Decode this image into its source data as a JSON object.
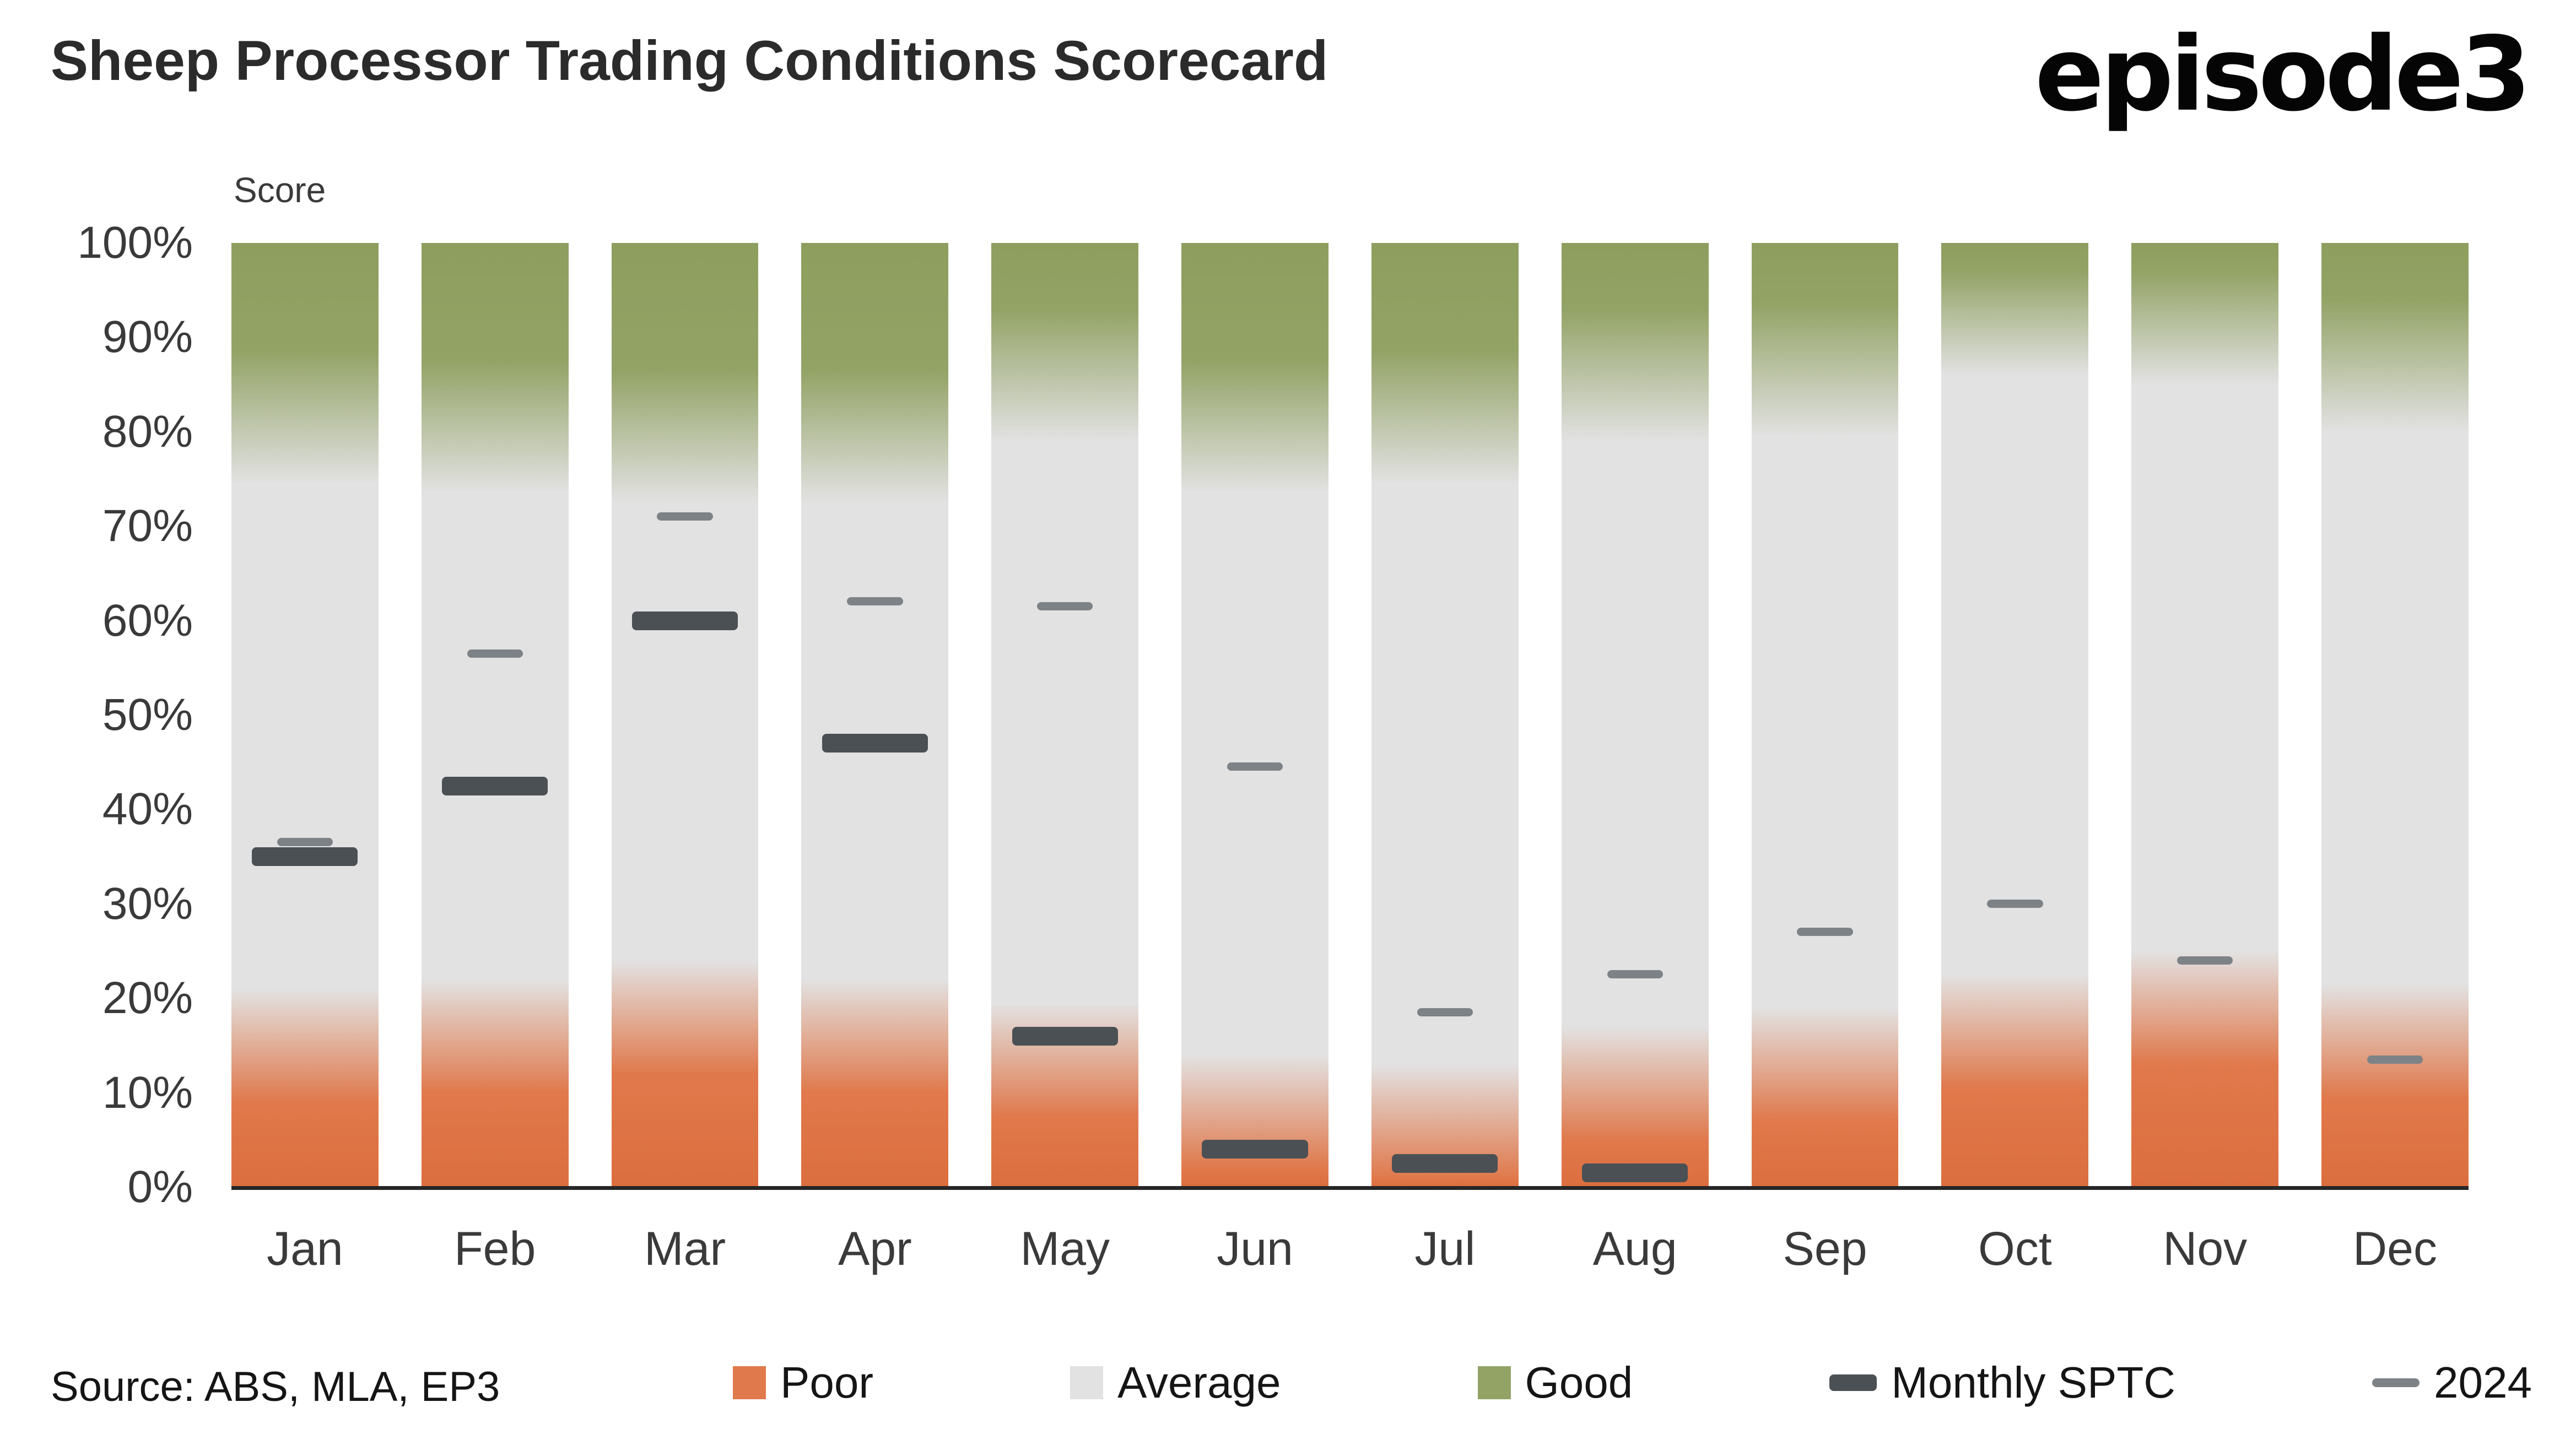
{
  "header": {
    "title": "Sheep Processor Trading Conditions Scorecard",
    "logo": "episode3"
  },
  "footer": {
    "source": "Source: ABS, MLA, EP3"
  },
  "legend": [
    {
      "label": "Poor",
      "color": "#e0794c",
      "shape": "square"
    },
    {
      "label": "Average",
      "color": "#e2e2e2",
      "shape": "square"
    },
    {
      "label": "Good",
      "color": "#93a366",
      "shape": "square"
    },
    {
      "label": "Monthly SPTC",
      "color": "#4b5055",
      "shape": "dash-thick"
    },
    {
      "label": "2024",
      "color": "#7d8287",
      "shape": "dash-thin"
    }
  ],
  "colors": {
    "poor_deep": "#dc6e3e",
    "poor": "#e0794c",
    "average": "#e2e2e2",
    "good": "#93a366",
    "good_deep": "#8d9e5e",
    "marker_sptc": "#4b5055",
    "marker_2024": "#7d8287",
    "axis": "#262626"
  },
  "chart_data": {
    "type": "bar",
    "subtype": "stacked-percent-zones-with-markers",
    "title": "Sheep Processor Trading Conditions Scorecard",
    "ylabel": "Score",
    "xlabel": "",
    "ylim": [
      0,
      100
    ],
    "grid": false,
    "legend_position": "bottom",
    "yticks": [
      "0%",
      "10%",
      "20%",
      "30%",
      "40%",
      "50%",
      "60%",
      "70%",
      "80%",
      "90%",
      "100%"
    ],
    "categories": [
      "Jan",
      "Feb",
      "Mar",
      "Apr",
      "May",
      "Jun",
      "Jul",
      "Aug",
      "Sep",
      "Oct",
      "Nov",
      "Dec"
    ],
    "zones": {
      "poor_top_pct": [
        21,
        22,
        24,
        22,
        19.5,
        14,
        13,
        17,
        19,
        22.5,
        25,
        21.5
      ],
      "average_top_pct": [
        74.5,
        73.5,
        72.5,
        72.5,
        79,
        73.5,
        74.5,
        79,
        79.5,
        86,
        85,
        80
      ],
      "good_top_pct": [
        100,
        100,
        100,
        100,
        100,
        100,
        100,
        100,
        100,
        100,
        100,
        100
      ]
    },
    "series": [
      {
        "name": "Monthly SPTC",
        "values": [
          35,
          42.5,
          60,
          47,
          16,
          4,
          2.5,
          1.5,
          null,
          null,
          null,
          null
        ]
      },
      {
        "name": "2024",
        "values": [
          36.5,
          56.5,
          71,
          62,
          61.5,
          44.5,
          18.5,
          22.5,
          27,
          30,
          24,
          13.5
        ]
      }
    ]
  }
}
